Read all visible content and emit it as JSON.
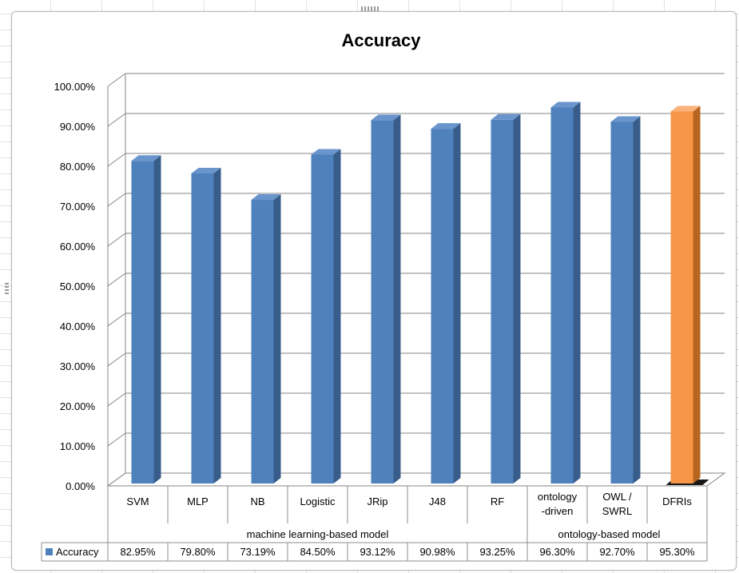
{
  "chart_data": {
    "type": "bar",
    "title": "Accuracy",
    "xlabel": "",
    "ylabel": "",
    "ylim": [
      0,
      100
    ],
    "y_ticks": [
      "0.00%",
      "10.00%",
      "20.00%",
      "30.00%",
      "40.00%",
      "50.00%",
      "60.00%",
      "70.00%",
      "80.00%",
      "90.00%",
      "100.00%"
    ],
    "categories": [
      [
        "SVM"
      ],
      [
        "MLP"
      ],
      [
        "NB"
      ],
      [
        "Logistic"
      ],
      [
        "JRip"
      ],
      [
        "J48"
      ],
      [
        "RF"
      ],
      [
        "ontology",
        "-driven"
      ],
      [
        "OWL /",
        "SWRL"
      ],
      [
        "DFRIs"
      ]
    ],
    "groups": [
      {
        "label": "machine learning-based model",
        "span": 7
      },
      {
        "label": "ontology-based model",
        "span": 3
      }
    ],
    "series": [
      {
        "name": "Accuracy",
        "values": [
          82.95,
          79.8,
          73.19,
          84.5,
          93.12,
          90.98,
          93.25,
          96.3,
          92.7,
          95.3
        ],
        "table_values": [
          "82.95%",
          "79.80%",
          "73.19%",
          "84.50%",
          "93.12%",
          "90.98%",
          "93.25%",
          "96.30%",
          "92.70%",
          "95.30%"
        ]
      }
    ],
    "highlight_index": 9,
    "grid": true,
    "legend": "data-table"
  },
  "colors": {
    "bar_front": "#4f81bd",
    "bar_side": "#385d8a",
    "bar_top": "#6a95cc",
    "highlight_front": "#f79646",
    "highlight_side": "#b8661f",
    "highlight_top": "#fab27a",
    "grid": "#868686",
    "text": "#000000"
  }
}
